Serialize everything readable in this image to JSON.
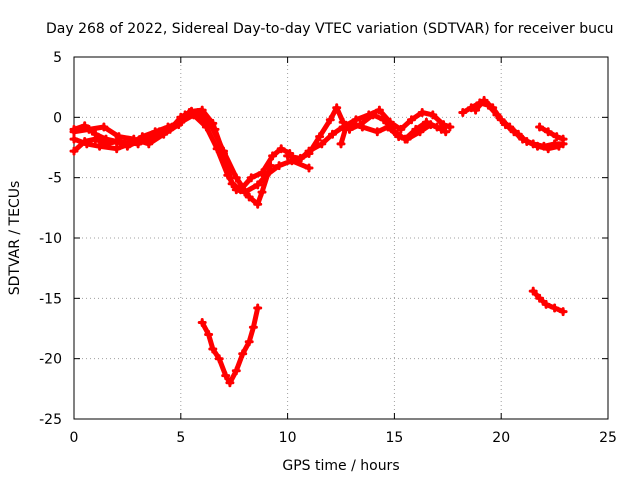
{
  "chart_data": {
    "type": "scatter",
    "title": "Day 268 of 2022, Sidereal Day-to-day VTEC variation (SDTVAR) for receiver bucu",
    "xlabel": "GPS time / hours",
    "ylabel": "SDTVAR / TECUs",
    "xlim": [
      0,
      25
    ],
    "ylim": [
      -25,
      5
    ],
    "xticks": [
      0,
      5,
      10,
      15,
      20,
      25
    ],
    "yticks": [
      5,
      0,
      -5,
      -10,
      -15,
      -20,
      -25
    ],
    "x_tick_labels": [
      "0",
      "5",
      "10",
      "15",
      "20",
      "25"
    ],
    "y_tick_labels": [
      "5",
      "0",
      "-5",
      "-10",
      "-15",
      "-20",
      "-25"
    ],
    "grid": true,
    "marker_color": "#ff0000",
    "series": [
      {
        "name": "track-a",
        "points": [
          [
            0.0,
            -2.8
          ],
          [
            0.5,
            -2.0
          ],
          [
            1.0,
            -1.8
          ],
          [
            1.5,
            -2.2
          ],
          [
            2.0,
            -2.0
          ],
          [
            2.5,
            -2.4
          ],
          [
            3.0,
            -2.0
          ],
          [
            3.5,
            -1.6
          ],
          [
            4.0,
            -1.2
          ],
          [
            4.5,
            -1.0
          ],
          [
            5.0,
            0.0
          ],
          [
            5.5,
            0.5
          ],
          [
            6.0,
            0.6
          ],
          [
            6.5,
            -0.5
          ],
          [
            7.0,
            -3.0
          ],
          [
            7.4,
            -5.5
          ],
          [
            7.8,
            -6.0
          ],
          [
            8.3,
            -5.0
          ],
          [
            8.8,
            -4.6
          ],
          [
            9.3,
            -3.2
          ],
          [
            9.7,
            -2.6
          ],
          [
            10.1,
            -3.0
          ]
        ]
      },
      {
        "name": "track-b",
        "points": [
          [
            0.0,
            -1.8
          ],
          [
            0.6,
            -2.2
          ],
          [
            1.2,
            -2.4
          ],
          [
            2.0,
            -2.6
          ],
          [
            2.6,
            -2.2
          ],
          [
            3.2,
            -1.6
          ],
          [
            3.8,
            -1.2
          ],
          [
            4.4,
            -0.8
          ],
          [
            5.0,
            -0.4
          ],
          [
            5.6,
            0.2
          ],
          [
            6.2,
            -0.8
          ],
          [
            6.7,
            -2.6
          ],
          [
            7.2,
            -4.8
          ],
          [
            7.6,
            -6.0
          ],
          [
            8.0,
            -6.2
          ],
          [
            8.6,
            -5.6
          ],
          [
            9.0,
            -4.8
          ],
          [
            9.6,
            -4.0
          ],
          [
            10.2,
            -3.6
          ],
          [
            11.0,
            -4.2
          ]
        ]
      },
      {
        "name": "track-c",
        "points": [
          [
            0.0,
            -1.0
          ],
          [
            0.5,
            -0.7
          ],
          [
            1.0,
            -1.4
          ],
          [
            1.5,
            -1.8
          ],
          [
            2.0,
            -2.0
          ],
          [
            3.0,
            -2.2
          ],
          [
            4.0,
            -1.4
          ],
          [
            4.6,
            -0.8
          ],
          [
            5.2,
            0.2
          ],
          [
            5.8,
            0.4
          ],
          [
            6.4,
            -0.6
          ],
          [
            7.0,
            -2.8
          ],
          [
            7.6,
            -5.0
          ],
          [
            8.2,
            -6.6
          ],
          [
            8.6,
            -7.2
          ],
          [
            8.8,
            -6.2
          ],
          [
            9.2,
            -4.0
          ]
        ]
      },
      {
        "name": "track-d",
        "points": [
          [
            0.0,
            -1.2
          ],
          [
            0.7,
            -1.0
          ],
          [
            1.4,
            -0.8
          ],
          [
            2.1,
            -1.6
          ],
          [
            2.8,
            -1.8
          ],
          [
            3.5,
            -2.2
          ],
          [
            4.2,
            -1.4
          ],
          [
            4.9,
            -0.6
          ],
          [
            5.4,
            0.4
          ],
          [
            6.0,
            0.0
          ],
          [
            6.6,
            -1.0
          ]
        ]
      },
      {
        "name": "track-e",
        "points": [
          [
            10.0,
            -3.2
          ],
          [
            10.6,
            -3.4
          ],
          [
            11.0,
            -3.0
          ],
          [
            11.5,
            -1.6
          ],
          [
            12.0,
            -0.2
          ],
          [
            12.3,
            0.8
          ],
          [
            12.6,
            -0.4
          ],
          [
            12.9,
            -1.0
          ],
          [
            13.4,
            -0.6
          ],
          [
            14.0,
            0.2
          ],
          [
            14.5,
            -0.2
          ],
          [
            15.0,
            -1.2
          ],
          [
            15.5,
            -1.8
          ],
          [
            16.0,
            -1.0
          ],
          [
            16.5,
            -0.4
          ],
          [
            17.0,
            -0.8
          ],
          [
            17.4,
            -1.2
          ]
        ]
      },
      {
        "name": "track-f",
        "points": [
          [
            10.5,
            -3.6
          ],
          [
            11.0,
            -2.8
          ],
          [
            11.6,
            -2.2
          ],
          [
            12.1,
            -1.4
          ],
          [
            12.6,
            -0.8
          ],
          [
            13.2,
            -0.2
          ],
          [
            13.8,
            0.2
          ],
          [
            14.3,
            0.6
          ],
          [
            14.8,
            -0.4
          ],
          [
            15.3,
            -1.0
          ],
          [
            15.8,
            -0.2
          ],
          [
            16.3,
            0.4
          ],
          [
            16.8,
            0.2
          ],
          [
            17.3,
            -0.6
          ],
          [
            17.6,
            -0.8
          ]
        ]
      },
      {
        "name": "track-g",
        "points": [
          [
            12.5,
            -2.2
          ],
          [
            12.7,
            -1.0
          ],
          [
            13.0,
            -0.6
          ],
          [
            13.5,
            -0.8
          ],
          [
            14.2,
            -1.2
          ],
          [
            14.7,
            -0.8
          ],
          [
            15.2,
            -1.6
          ],
          [
            15.6,
            -1.8
          ],
          [
            16.2,
            -1.2
          ],
          [
            16.7,
            -0.6
          ],
          [
            17.2,
            -1.0
          ]
        ]
      },
      {
        "name": "track-h",
        "points": [
          [
            18.2,
            0.4
          ],
          [
            18.6,
            0.8
          ],
          [
            19.0,
            1.2
          ],
          [
            19.4,
            1.0
          ],
          [
            19.8,
            0.2
          ],
          [
            20.2,
            -0.6
          ],
          [
            20.6,
            -1.2
          ],
          [
            21.0,
            -1.8
          ],
          [
            21.5,
            -2.2
          ],
          [
            22.0,
            -2.4
          ],
          [
            22.5,
            -2.2
          ],
          [
            22.9,
            -2.2
          ]
        ]
      },
      {
        "name": "track-i",
        "points": [
          [
            18.8,
            0.6
          ],
          [
            19.2,
            1.4
          ],
          [
            19.6,
            0.8
          ],
          [
            20.0,
            -0.2
          ],
          [
            20.4,
            -0.8
          ],
          [
            20.8,
            -1.4
          ],
          [
            21.2,
            -2.0
          ],
          [
            21.7,
            -2.4
          ],
          [
            22.2,
            -2.6
          ],
          [
            22.7,
            -2.4
          ]
        ]
      },
      {
        "name": "track-j",
        "points": [
          [
            21.8,
            -0.8
          ],
          [
            22.2,
            -1.2
          ],
          [
            22.6,
            -1.6
          ],
          [
            22.9,
            -1.8
          ]
        ]
      },
      {
        "name": "track-k",
        "points": [
          [
            6.0,
            -17.0
          ],
          [
            6.3,
            -18.0
          ],
          [
            6.5,
            -19.2
          ],
          [
            6.8,
            -20.0
          ],
          [
            7.1,
            -21.4
          ],
          [
            7.3,
            -22.0
          ],
          [
            7.6,
            -21.0
          ],
          [
            7.9,
            -19.6
          ],
          [
            8.2,
            -18.6
          ],
          [
            8.4,
            -17.4
          ],
          [
            8.6,
            -15.8
          ]
        ]
      },
      {
        "name": "track-l",
        "points": [
          [
            21.5,
            -14.4
          ],
          [
            21.8,
            -15.0
          ],
          [
            22.1,
            -15.5
          ],
          [
            22.5,
            -15.8
          ],
          [
            22.9,
            -16.1
          ]
        ]
      }
    ]
  }
}
